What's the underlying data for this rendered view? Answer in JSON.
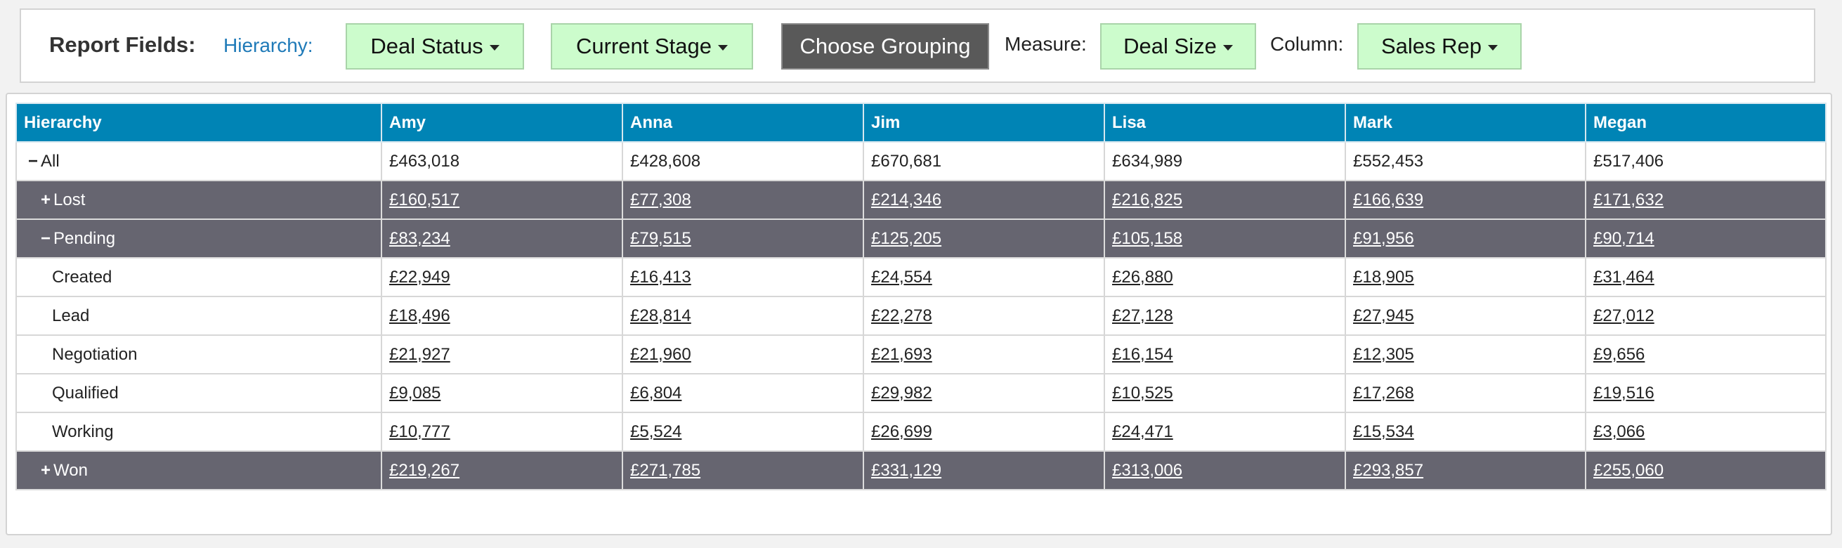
{
  "toolbar": {
    "report_fields_label": "Report Fields:",
    "hierarchy_link": "Hierarchy:",
    "deal_status_button": "Deal Status",
    "current_stage_button": "Current Stage",
    "choose_grouping_button": "Choose Grouping",
    "measure_label": "Measure:",
    "deal_size_button": "Deal Size",
    "column_label": "Column:",
    "sales_rep_button": "Sales Rep"
  },
  "colors": {
    "header_bg": "#0084b5",
    "group_row_bg": "#666570",
    "green_button_bg": "#ccfccc",
    "dark_button_bg": "#595959",
    "link_blue": "#1f7ab8"
  },
  "table": {
    "headers": [
      "Hierarchy",
      "Amy",
      "Anna",
      "Jim",
      "Lisa",
      "Mark",
      "Megan"
    ],
    "rows": [
      {
        "toggle": "−",
        "label": "All",
        "values": [
          "£463,018",
          "£428,608",
          "£670,681",
          "£634,989",
          "£552,453",
          "£517,406"
        ]
      },
      {
        "toggle": "+",
        "label": "Lost",
        "values": [
          "£160,517",
          "£77,308",
          "£214,346",
          "£216,825",
          "£166,639",
          "£171,632"
        ]
      },
      {
        "toggle": "−",
        "label": "Pending",
        "values": [
          "£83,234",
          "£79,515",
          "£125,205",
          "£105,158",
          "£91,956",
          "£90,714"
        ]
      },
      {
        "label": "Created",
        "values": [
          "£22,949",
          "£16,413",
          "£24,554",
          "£26,880",
          "£18,905",
          "£31,464"
        ]
      },
      {
        "label": "Lead",
        "values": [
          "£18,496",
          "£28,814",
          "£22,278",
          "£27,128",
          "£27,945",
          "£27,012"
        ]
      },
      {
        "label": "Negotiation",
        "values": [
          "£21,927",
          "£21,960",
          "£21,693",
          "£16,154",
          "£12,305",
          "£9,656"
        ]
      },
      {
        "label": "Qualified",
        "values": [
          "£9,085",
          "£6,804",
          "£29,982",
          "£10,525",
          "£17,268",
          "£19,516"
        ]
      },
      {
        "label": "Working",
        "values": [
          "£10,777",
          "£5,524",
          "£26,699",
          "£24,471",
          "£15,534",
          "£3,066"
        ]
      },
      {
        "toggle": "+",
        "label": "Won",
        "values": [
          "£219,267",
          "£271,785",
          "£331,129",
          "£313,006",
          "£293,857",
          "£255,060"
        ]
      }
    ]
  }
}
